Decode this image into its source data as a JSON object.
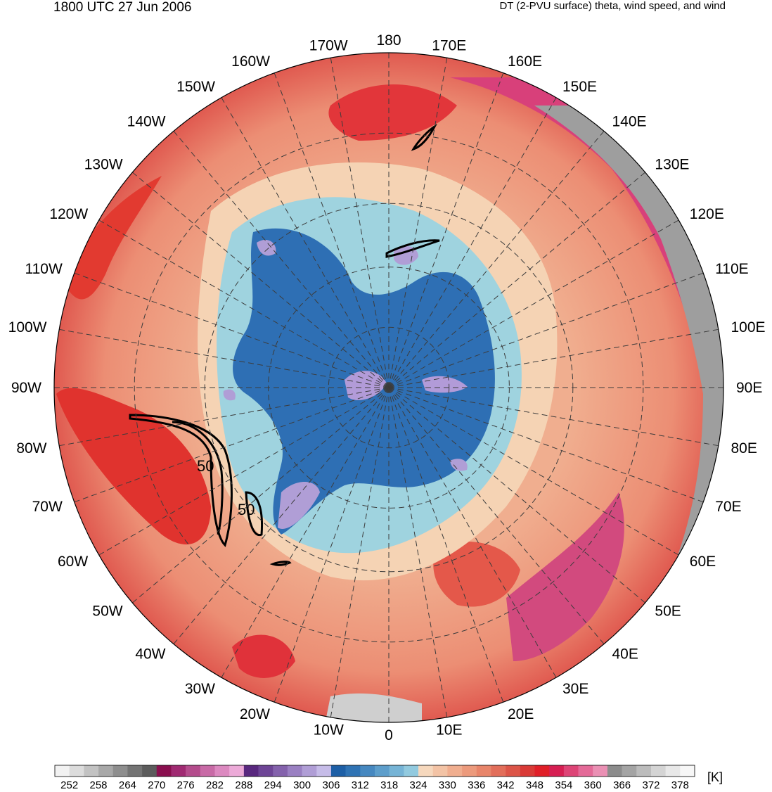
{
  "header": {
    "time_label": "1800 UTC 27 Jun 2006",
    "product_label": "DT (2-PVU surface) theta, wind speed, and wind"
  },
  "map": {
    "projection": "north-polar-stereographic",
    "longitude_labels": [
      {
        "text": "180",
        "lon": 180
      },
      {
        "text": "170E",
        "lon": 170
      },
      {
        "text": "160E",
        "lon": 160
      },
      {
        "text": "150E",
        "lon": 150
      },
      {
        "text": "140E",
        "lon": 140
      },
      {
        "text": "130E",
        "lon": 130
      },
      {
        "text": "120E",
        "lon": 120
      },
      {
        "text": "110E",
        "lon": 110
      },
      {
        "text": "100E",
        "lon": 100
      },
      {
        "text": "90E",
        "lon": 90
      },
      {
        "text": "80E",
        "lon": 80
      },
      {
        "text": "70E",
        "lon": 70
      },
      {
        "text": "60E",
        "lon": 60
      },
      {
        "text": "50E",
        "lon": 50
      },
      {
        "text": "40E",
        "lon": 40
      },
      {
        "text": "30E",
        "lon": 30
      },
      {
        "text": "20E",
        "lon": 20
      },
      {
        "text": "10E",
        "lon": 10
      },
      {
        "text": "0",
        "lon": 0
      },
      {
        "text": "10W",
        "lon": -10
      },
      {
        "text": "20W",
        "lon": -20
      },
      {
        "text": "30W",
        "lon": -30
      },
      {
        "text": "40W",
        "lon": -40
      },
      {
        "text": "50W",
        "lon": -50
      },
      {
        "text": "60W",
        "lon": -60
      },
      {
        "text": "70W",
        "lon": -70
      },
      {
        "text": "80W",
        "lon": -80
      },
      {
        "text": "90W",
        "lon": -90
      },
      {
        "text": "100W",
        "lon": -100
      },
      {
        "text": "110W",
        "lon": -110
      },
      {
        "text": "120W",
        "lon": -120
      },
      {
        "text": "130W",
        "lon": -130
      },
      {
        "text": "140W",
        "lon": -140
      },
      {
        "text": "150W",
        "lon": -150
      },
      {
        "text": "160W",
        "lon": -160
      },
      {
        "text": "170W",
        "lon": -170
      }
    ],
    "jet_contour_labels": [
      "50",
      "50"
    ],
    "field_colors": {
      "coldest": "#7b5fb8",
      "cold": "#2f6db3",
      "cool": "#9ed2de",
      "neutral": "#f6d3b3",
      "warm": "#ef9a7a",
      "hot": "#e23a30",
      "very_hot": "#d4387a",
      "extreme": "#a0a0a0"
    }
  },
  "colorbar": {
    "unit": "[K]",
    "tick_labels": [
      "252",
      "258",
      "264",
      "270",
      "276",
      "282",
      "288",
      "294",
      "300",
      "306",
      "312",
      "318",
      "324",
      "330",
      "336",
      "342",
      "348",
      "354",
      "360",
      "366",
      "372",
      "378"
    ],
    "colors": [
      "#f2f2f2",
      "#dcdcdc",
      "#c2c2c2",
      "#a8a8a8",
      "#8e8e8e",
      "#747474",
      "#5c5c5c",
      "#8a0f4f",
      "#a02a72",
      "#b44c8c",
      "#c86aa6",
      "#dc89c0",
      "#ecaad8",
      "#59287f",
      "#6e4596",
      "#8462ac",
      "#9a80c2",
      "#b09ed6",
      "#c6bce8",
      "#1d5fa6",
      "#2f73b4",
      "#4688c0",
      "#5d9ecb",
      "#76b4d6",
      "#92cadf",
      "#f6d8bd",
      "#f3c3a5",
      "#f0ae8f",
      "#ec9a7c",
      "#e8856a",
      "#e26e5a",
      "#dc5548",
      "#d93a36",
      "#e01f28",
      "#d61e52",
      "#dd4476",
      "#e46a98",
      "#ea90b4",
      "#8c8c8c",
      "#a4a4a4",
      "#bcbcbc",
      "#d4d4d4",
      "#e8e8e8",
      "#f7f7f7"
    ]
  }
}
